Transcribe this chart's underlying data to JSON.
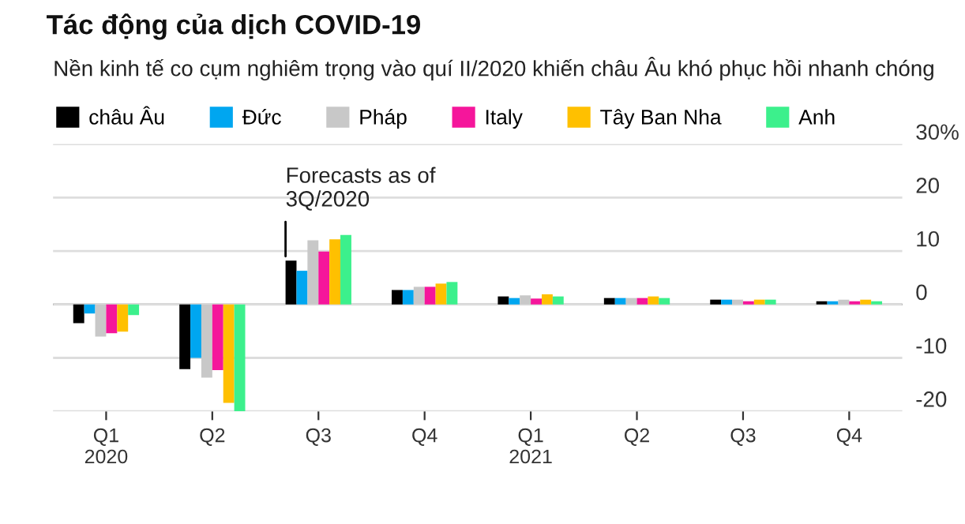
{
  "chart_data": {
    "type": "bar",
    "title": "Tác động của dịch COVID-19",
    "subtitle": "Nền kinh tế co cụm nghiêm trọng vào quí II/2020 khiến châu Âu khó phục hồi nhanh chóng",
    "categories": [
      "Q1\n2020",
      "Q2",
      "Q3",
      "Q4",
      "Q1\n2021",
      "Q2",
      "Q3",
      "Q4"
    ],
    "series": [
      {
        "name": "châu Âu",
        "color": "#000000",
        "values": [
          -3.5,
          -12.1,
          8.2,
          2.7,
          1.5,
          1.2,
          0.9,
          0.6
        ]
      },
      {
        "name": "Đức",
        "color": "#00a6f0",
        "values": [
          -1.7,
          -10.0,
          6.3,
          2.7,
          1.2,
          1.2,
          0.9,
          0.6
        ]
      },
      {
        "name": "Pháp",
        "color": "#c8c8c8",
        "values": [
          -6.0,
          -13.7,
          12.0,
          3.3,
          1.7,
          1.2,
          0.9,
          0.9
        ]
      },
      {
        "name": "Italy",
        "color": "#f5169b",
        "values": [
          -5.4,
          -12.3,
          9.9,
          3.3,
          1.1,
          1.2,
          0.6,
          0.6
        ]
      },
      {
        "name": "Tây Ban Nha",
        "color": "#ffc000",
        "values": [
          -5.1,
          -18.4,
          12.2,
          3.9,
          1.9,
          1.5,
          0.9,
          0.9
        ]
      },
      {
        "name": "Anh",
        "color": "#3cf08c",
        "values": [
          -2.0,
          -20.0,
          13.0,
          4.2,
          1.5,
          1.2,
          0.9,
          0.6
        ]
      }
    ],
    "ylim": [
      -20,
      30
    ],
    "yticks": [
      -20,
      -10,
      0,
      10,
      20,
      {
        "value": 30,
        "label": "30%"
      }
    ],
    "grid": "y",
    "legend": "top left",
    "annotations": [
      {
        "text": "Forecasts as of\n3Q/2020",
        "x": "Q3",
        "y": 9
      }
    ]
  }
}
